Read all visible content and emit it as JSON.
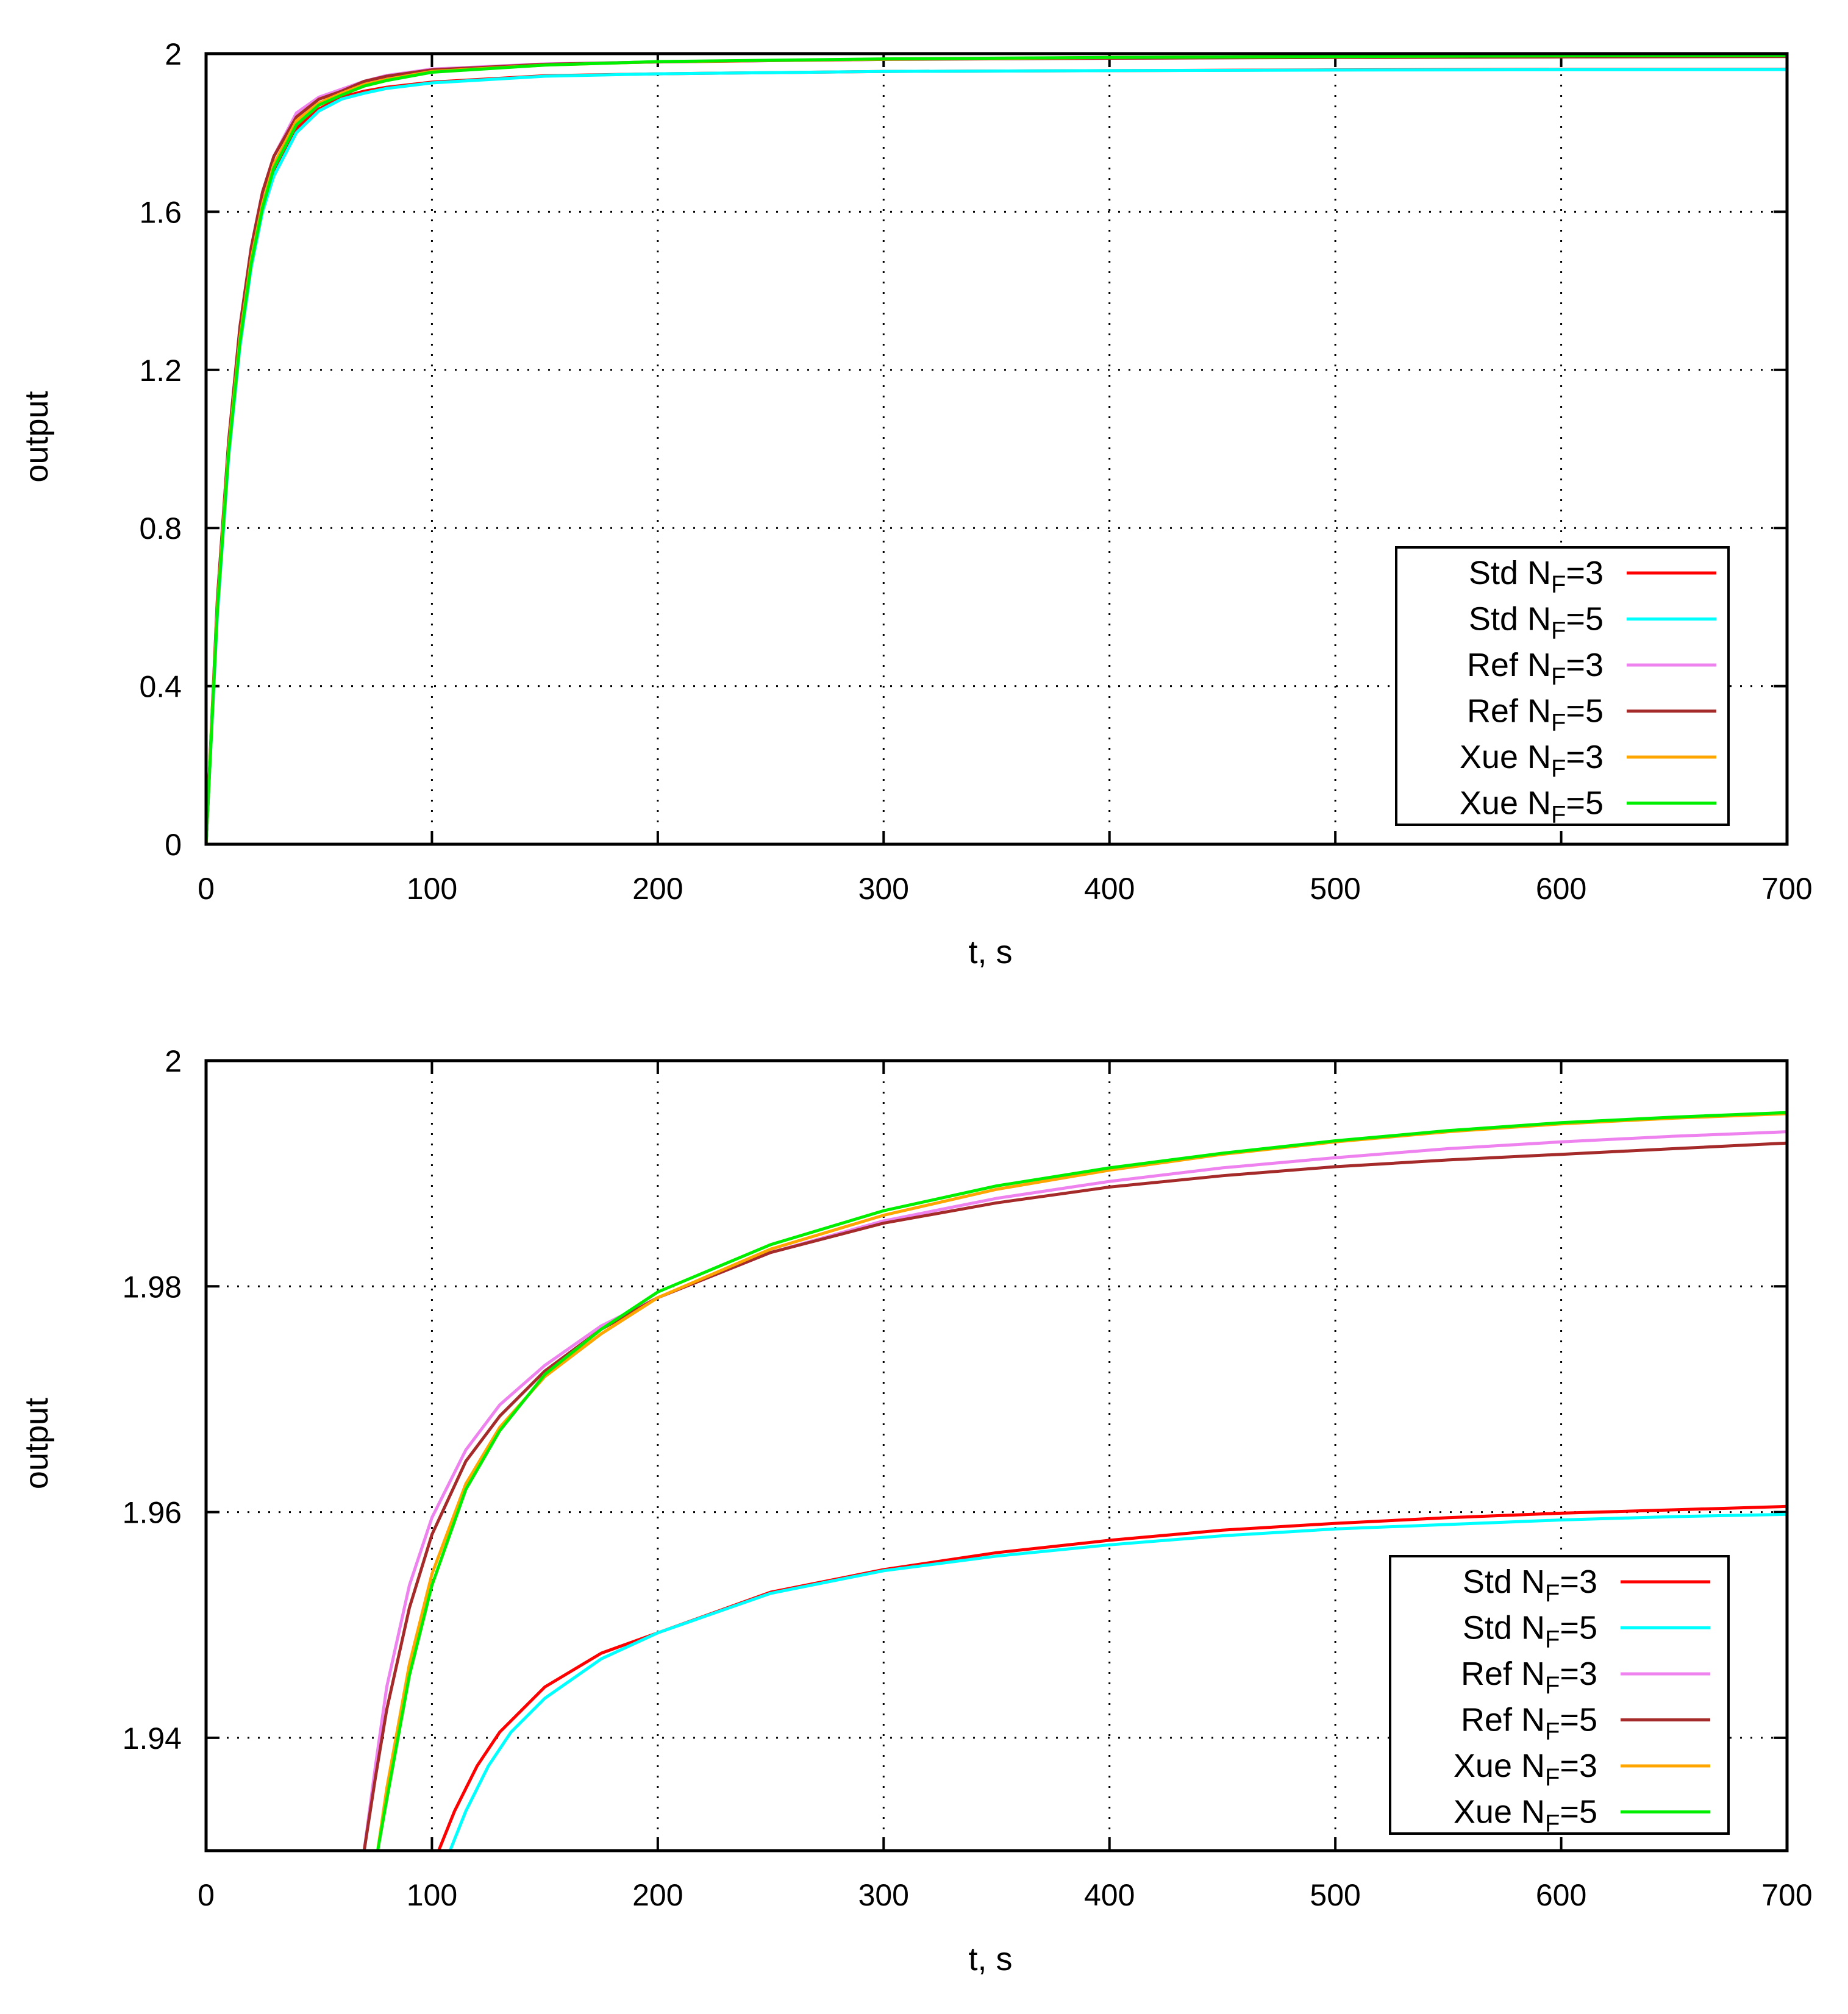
{
  "chart_data": [
    {
      "type": "line",
      "title": "",
      "xlabel": "t, s",
      "ylabel": "output",
      "xlim": [
        0,
        700
      ],
      "ylim": [
        0,
        2
      ],
      "xticks": [
        "0",
        "100",
        "200",
        "300",
        "400",
        "500",
        "600",
        "700"
      ],
      "yticks": [
        "0",
        "0.4",
        "0.8",
        "1.2",
        "1.6",
        "2"
      ],
      "grid": true,
      "legend_position": "bottom-right",
      "series": [
        {
          "name": "Std",
          "sub": "F",
          "n": "3",
          "color": "#ff0000",
          "x": [
            0,
            5,
            10,
            15,
            20,
            25,
            30,
            40,
            50,
            60,
            70,
            80,
            100,
            150,
            200,
            300,
            400,
            500,
            600,
            700
          ],
          "y": [
            0,
            0.6,
            1.0,
            1.28,
            1.48,
            1.61,
            1.7,
            1.81,
            1.86,
            1.89,
            1.905,
            1.915,
            1.928,
            1.944,
            1.949,
            1.955,
            1.957,
            1.959,
            1.96,
            1.9605
          ]
        },
        {
          "name": "Std",
          "sub": "F",
          "n": "5",
          "color": "#00ffff",
          "x": [
            0,
            5,
            10,
            15,
            20,
            25,
            30,
            40,
            50,
            60,
            70,
            80,
            100,
            150,
            200,
            300,
            400,
            500,
            600,
            700
          ],
          "y": [
            0,
            0.58,
            0.98,
            1.26,
            1.46,
            1.6,
            1.69,
            1.8,
            1.855,
            1.885,
            1.9,
            1.912,
            1.926,
            1.943,
            1.949,
            1.955,
            1.957,
            1.9585,
            1.9593,
            1.9598
          ]
        },
        {
          "name": "Ref",
          "sub": "F",
          "n": "3",
          "color": "#ee82ee",
          "x": [
            0,
            5,
            10,
            15,
            20,
            25,
            30,
            40,
            50,
            60,
            70,
            80,
            100,
            150,
            200,
            300,
            400,
            500,
            600,
            700
          ],
          "y": [
            0,
            0.62,
            1.02,
            1.31,
            1.51,
            1.65,
            1.74,
            1.85,
            1.89,
            1.91,
            1.93,
            1.945,
            1.961,
            1.974,
            1.979,
            1.9855,
            1.9885,
            1.9908,
            1.9925,
            1.9937
          ]
        },
        {
          "name": "Ref",
          "sub": "F",
          "n": "5",
          "color": "#a52a2a",
          "x": [
            0,
            5,
            10,
            15,
            20,
            25,
            30,
            40,
            50,
            60,
            70,
            80,
            100,
            150,
            200,
            300,
            400,
            500,
            600,
            700
          ],
          "y": [
            0,
            0.62,
            1.02,
            1.31,
            1.51,
            1.65,
            1.74,
            1.84,
            1.885,
            1.905,
            1.93,
            1.943,
            1.959,
            1.973,
            1.979,
            1.9855,
            1.9885,
            1.9903,
            1.9917,
            1.9927
          ]
        },
        {
          "name": "Xue",
          "sub": "F",
          "n": "3",
          "color": "#ffa500",
          "x": [
            0,
            5,
            10,
            15,
            20,
            25,
            30,
            40,
            50,
            60,
            70,
            80,
            100,
            150,
            200,
            300,
            400,
            500,
            600,
            700
          ],
          "y": [
            0,
            0.6,
            1.0,
            1.28,
            1.48,
            1.62,
            1.72,
            1.83,
            1.875,
            1.9,
            1.922,
            1.935,
            1.955,
            1.971,
            1.9795,
            1.986,
            1.9903,
            1.9927,
            1.9944,
            1.9953
          ]
        },
        {
          "name": "Xue",
          "sub": "F",
          "n": "5",
          "color": "#00ee00",
          "x": [
            0,
            5,
            10,
            15,
            20,
            25,
            30,
            40,
            50,
            60,
            70,
            80,
            100,
            150,
            200,
            300,
            400,
            500,
            600,
            700
          ],
          "y": [
            0,
            0.59,
            0.99,
            1.27,
            1.47,
            1.61,
            1.71,
            1.82,
            1.87,
            1.895,
            1.918,
            1.932,
            1.953,
            1.971,
            1.98,
            1.9868,
            1.9905,
            1.9928,
            1.9944,
            1.9954
          ]
        }
      ]
    },
    {
      "type": "line",
      "title": "",
      "xlabel": "t, s",
      "ylabel": "output",
      "xlim": [
        0,
        700
      ],
      "ylim": [
        1.93,
        2
      ],
      "xticks": [
        "0",
        "100",
        "200",
        "300",
        "400",
        "500",
        "600",
        "700"
      ],
      "yticks": [
        "1.94",
        "1.96",
        "1.98",
        "2"
      ],
      "grid": true,
      "legend_position": "bottom-right",
      "series": [
        {
          "name": "Std",
          "sub": "F",
          "n": "3",
          "color": "#ff0000",
          "x": [
            103,
            110,
            120,
            130,
            150,
            175,
            200,
            250,
            300,
            350,
            400,
            450,
            500,
            550,
            600,
            650,
            700
          ],
          "y": [
            1.93,
            1.9335,
            1.9375,
            1.9405,
            1.9445,
            1.9475,
            1.9493,
            1.9529,
            1.9549,
            1.9564,
            1.9575,
            1.9584,
            1.959,
            1.9595,
            1.9599,
            1.9602,
            1.9605
          ]
        },
        {
          "name": "Std",
          "sub": "F",
          "n": "5",
          "color": "#00ffff",
          "x": [
            108,
            115,
            125,
            135,
            150,
            175,
            200,
            250,
            300,
            350,
            400,
            450,
            500,
            550,
            600,
            650,
            700
          ],
          "y": [
            1.93,
            1.9335,
            1.9375,
            1.9405,
            1.9435,
            1.947,
            1.9493,
            1.9528,
            1.9548,
            1.9561,
            1.9571,
            1.9579,
            1.9585,
            1.9589,
            1.9593,
            1.9596,
            1.9598
          ]
        },
        {
          "name": "Ref",
          "sub": "F",
          "n": "3",
          "color": "#ee82ee",
          "x": [
            70,
            75,
            80,
            90,
            100,
            115,
            130,
            150,
            175,
            200,
            250,
            300,
            350,
            400,
            450,
            500,
            550,
            600,
            650,
            700
          ],
          "y": [
            1.93,
            1.9375,
            1.9445,
            1.9535,
            1.9595,
            1.9655,
            1.9695,
            1.973,
            1.9765,
            1.979,
            1.983,
            1.9858,
            1.9878,
            1.9893,
            1.9905,
            1.9914,
            1.9922,
            1.9928,
            1.9933,
            1.9937
          ]
        },
        {
          "name": "Ref",
          "sub": "F",
          "n": "5",
          "color": "#a52a2a",
          "x": [
            70,
            75,
            80,
            90,
            100,
            115,
            130,
            150,
            175,
            200,
            250,
            300,
            350,
            400,
            450,
            500,
            550,
            600,
            650,
            700
          ],
          "y": [
            1.93,
            1.9365,
            1.9425,
            1.9515,
            1.958,
            1.9645,
            1.9685,
            1.9725,
            1.9762,
            1.979,
            1.983,
            1.9856,
            1.9874,
            1.9888,
            1.9898,
            1.9906,
            1.9912,
            1.9917,
            1.9922,
            1.9927
          ]
        },
        {
          "name": "Xue",
          "sub": "F",
          "n": "3",
          "color": "#ffa500",
          "x": [
            76,
            80,
            90,
            100,
            115,
            130,
            150,
            175,
            200,
            250,
            300,
            350,
            400,
            450,
            500,
            550,
            600,
            650,
            700
          ],
          "y": [
            1.93,
            1.9355,
            1.9465,
            1.9545,
            1.9625,
            1.9675,
            1.972,
            1.9758,
            1.979,
            1.9833,
            1.9863,
            1.9886,
            1.9903,
            1.9917,
            1.9928,
            1.9937,
            1.9944,
            1.9949,
            1.9953
          ]
        },
        {
          "name": "Xue",
          "sub": "F",
          "n": "5",
          "color": "#00ee00",
          "x": [
            76,
            80,
            90,
            100,
            115,
            130,
            150,
            175,
            200,
            250,
            300,
            350,
            400,
            450,
            500,
            550,
            600,
            650,
            700
          ],
          "y": [
            1.93,
            1.9345,
            1.9455,
            1.9535,
            1.962,
            1.9672,
            1.9722,
            1.9762,
            1.9795,
            1.9837,
            1.9867,
            1.9889,
            1.9905,
            1.9918,
            1.9929,
            1.9938,
            1.9945,
            1.995,
            1.9954
          ]
        }
      ]
    }
  ]
}
